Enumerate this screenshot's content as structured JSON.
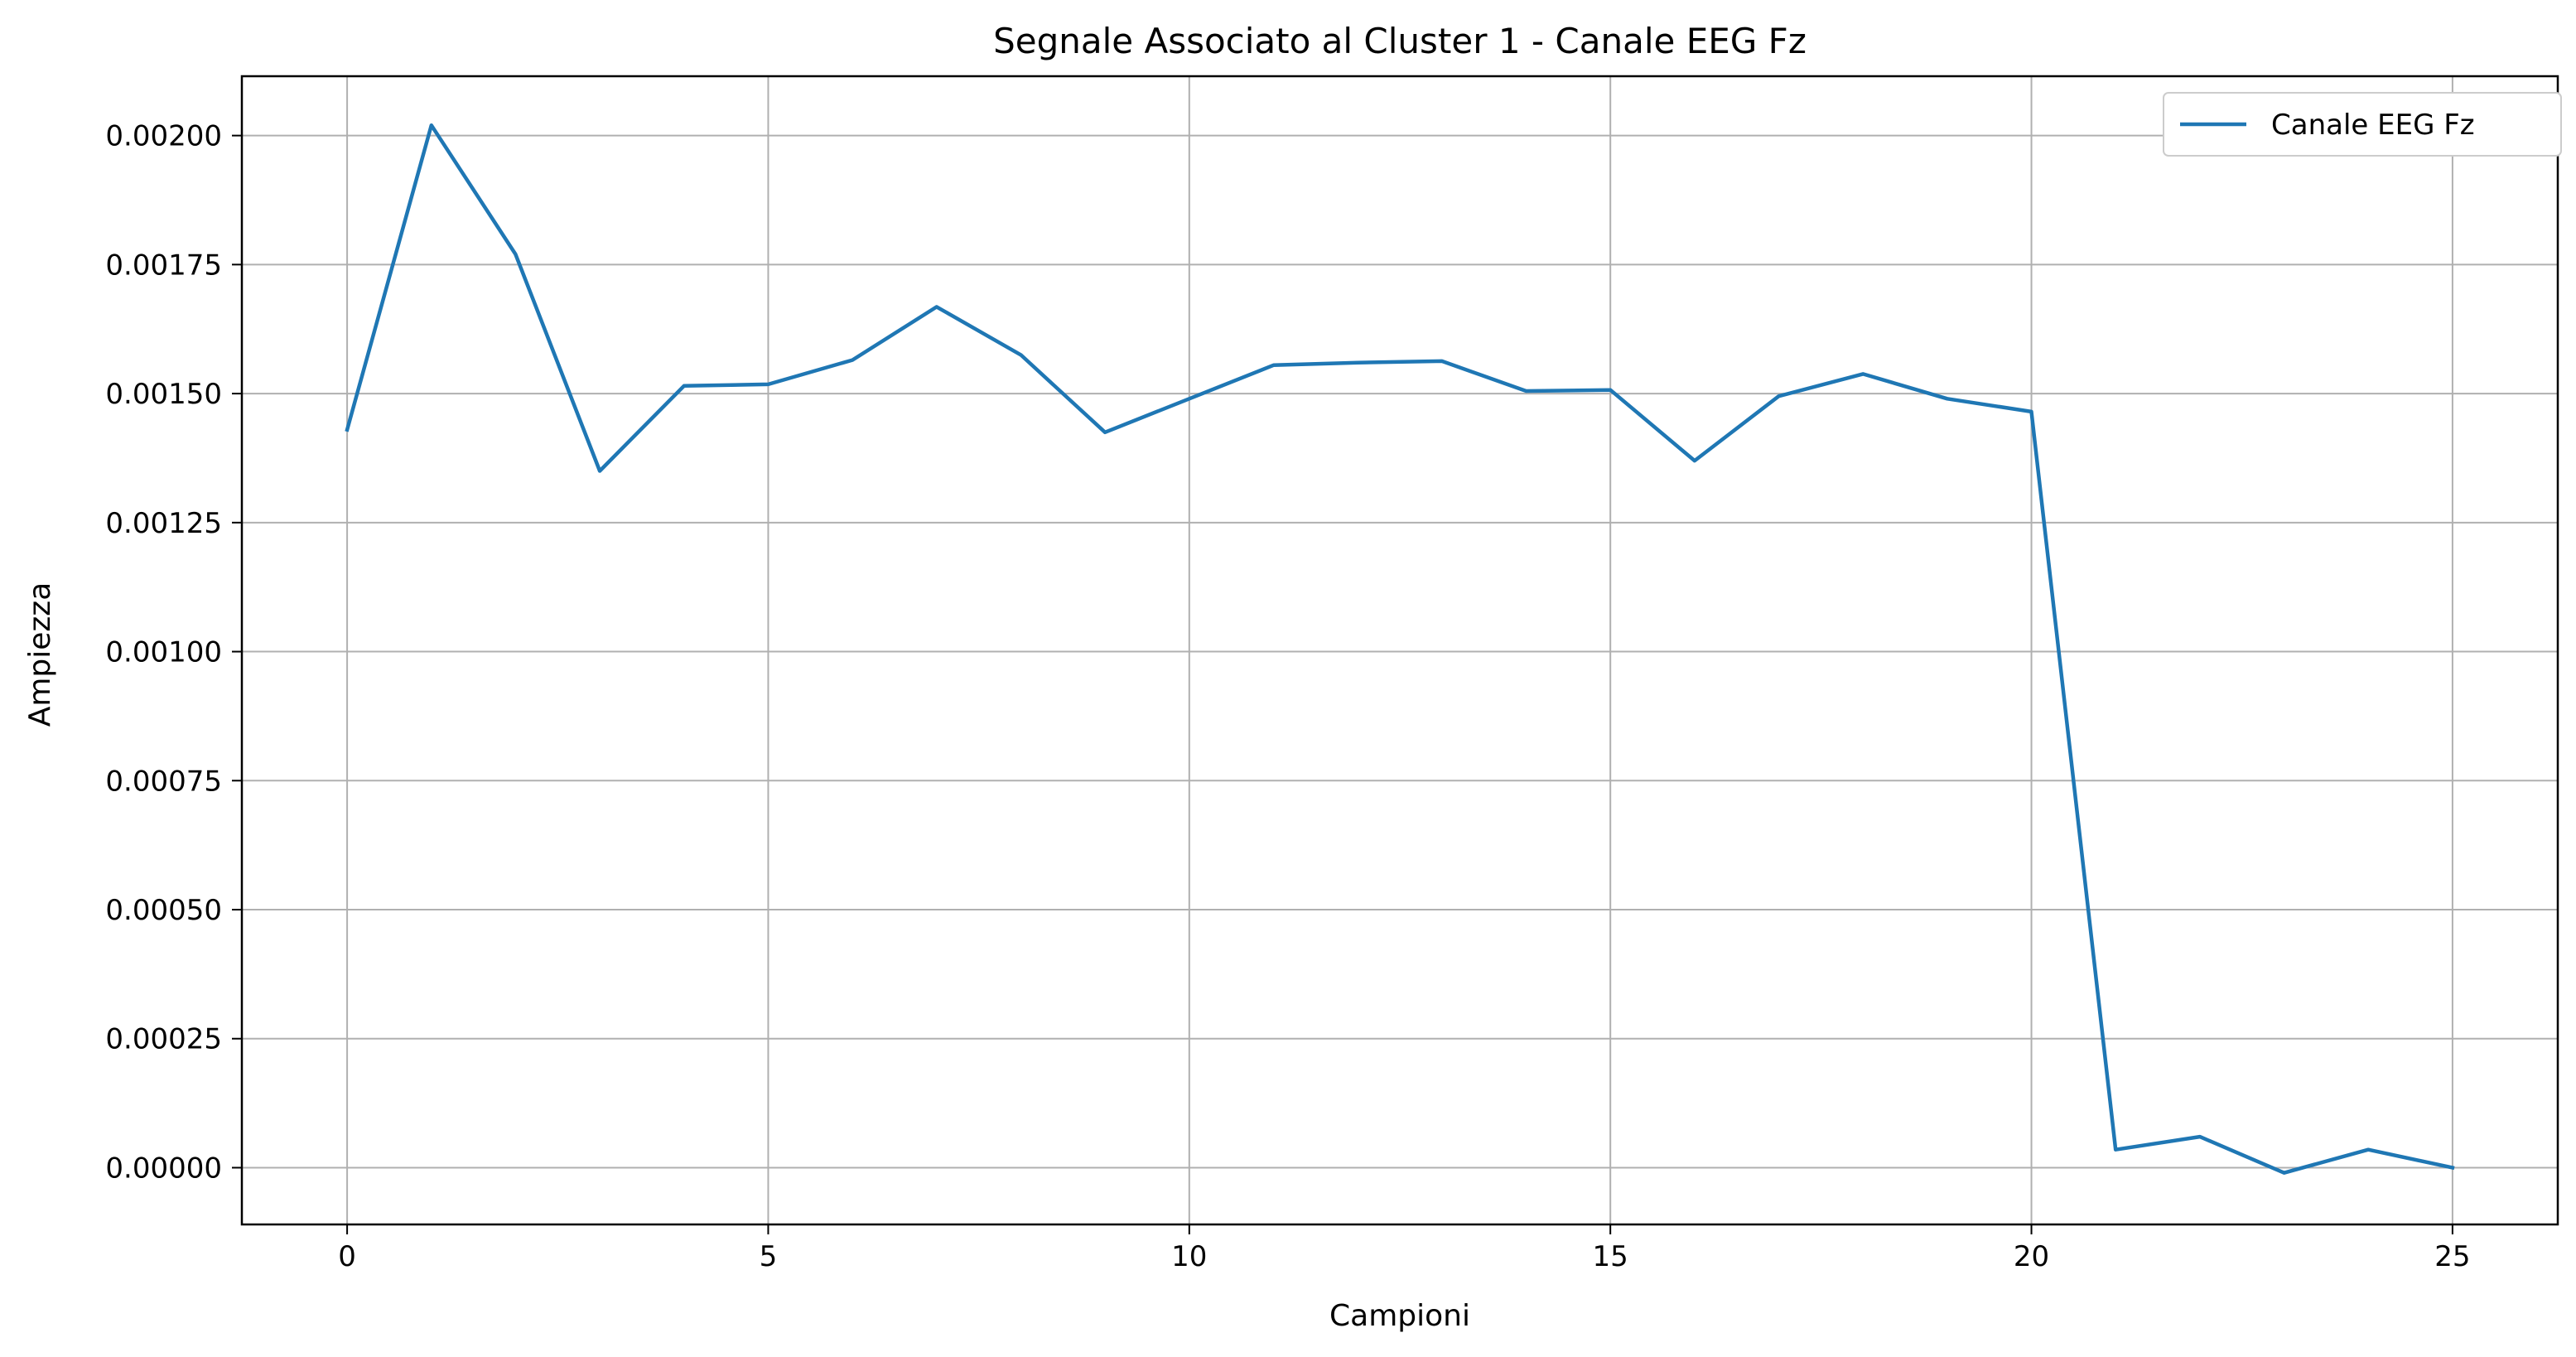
{
  "chart_data": {
    "type": "line",
    "title": "Segnale Associato al Cluster 1 - Canale EEG Fz",
    "xlabel": "Campioni",
    "ylabel": "Ampiezza",
    "x": [
      0,
      1,
      2,
      3,
      4,
      5,
      6,
      7,
      8,
      9,
      10,
      11,
      12,
      13,
      14,
      15,
      16,
      17,
      18,
      19,
      20,
      21,
      22,
      23,
      24,
      25
    ],
    "series": [
      {
        "name": "Canale EEG Fz",
        "color": "#1f77b4",
        "values": [
          0.00143,
          0.00202,
          0.00177,
          0.00135,
          0.001515,
          0.001518,
          0.001565,
          0.001668,
          0.001575,
          0.001425,
          0.00149,
          0.001555,
          0.00156,
          0.001563,
          0.001505,
          0.001507,
          0.00137,
          0.001495,
          0.001538,
          0.00149,
          0.001465,
          3.5e-05,
          6e-05,
          -1e-05,
          3.5e-05,
          0.0
        ]
      }
    ],
    "xlim": [
      -1.25,
      26.25
    ],
    "ylim": [
      -0.00011,
      0.002115
    ],
    "xticks": [
      0,
      5,
      10,
      15,
      20,
      25
    ],
    "yticks": [
      0.0,
      0.00025,
      0.0005,
      0.00075,
      0.001,
      0.00125,
      0.0015,
      0.00175,
      0.002
    ],
    "xtick_labels": [
      "0",
      "5",
      "10",
      "15",
      "20",
      "25"
    ],
    "ytick_labels": [
      "0.00000",
      "0.00025",
      "0.00050",
      "0.00075",
      "0.00100",
      "0.00125",
      "0.00150",
      "0.00175",
      "0.00200"
    ],
    "grid": true,
    "legend_position": "top-right"
  }
}
